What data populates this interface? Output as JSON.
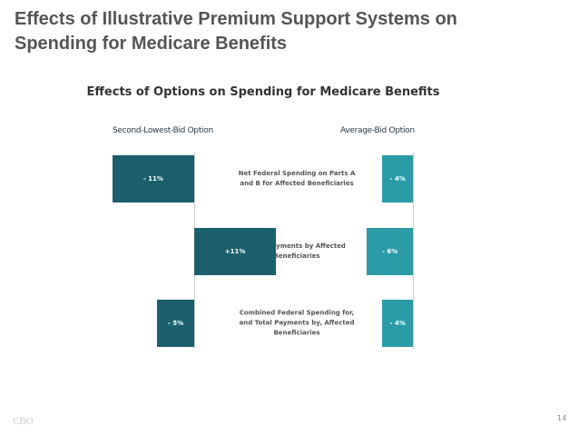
{
  "slide_title": "Effects of Illustrative Premium Support Systems on Spending for Medicare Benefits",
  "chart_data": {
    "type": "bar",
    "orientation": "horizontal",
    "title": "Effects of Options on Spending for Medicare Benefits",
    "categories": [
      "Net Federal Spending on Parts A and B for Affected Beneficiaries",
      "Total Payments by Affected Beneficiaries",
      "Combined Federal Spending for, and Total Payments by, Affected Beneficiaries"
    ],
    "series": [
      {
        "name": "Second-Lowest-Bid Option",
        "color": "#1b5f6d",
        "values": [
          -11,
          11,
          -5
        ],
        "value_labels": [
          "- 11%",
          "+11%",
          "- 5%"
        ],
        "xlim": [
          -12,
          12
        ]
      },
      {
        "name": "Average-Bid Option",
        "color": "#2b9ba8",
        "values": [
          -4,
          -6,
          -4
        ],
        "value_labels": [
          "- 4%",
          "- 6%",
          "- 4%"
        ],
        "xlim": [
          -7,
          0
        ]
      }
    ]
  },
  "footer": {
    "logo": "CBO",
    "page": "14"
  }
}
